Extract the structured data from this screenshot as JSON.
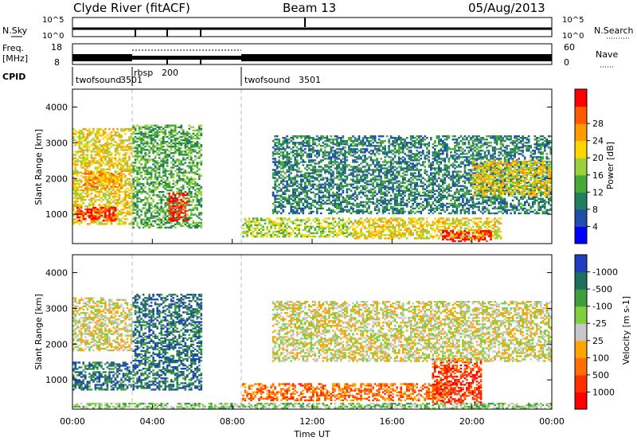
{
  "header": {
    "station": "Clyde River (fitACF)",
    "beam": "Beam 13",
    "date": "05/Aug/2013"
  },
  "panels": {
    "nsky": {
      "left_label": "N.Sky",
      "right_label": "N.Search",
      "left_ticks": [
        "10^5",
        "10^0"
      ],
      "right_ticks": [
        "10^5",
        "10^0"
      ]
    },
    "freq": {
      "left_label_1": "Freq.",
      "left_label_2": "[MHz]",
      "right_label": "Nave",
      "left_ticks": [
        "18",
        "8"
      ],
      "right_ticks": [
        "60",
        "0"
      ]
    },
    "cpid": {
      "label": "CPID",
      "segments": [
        {
          "name": "twofsound",
          "id": "3501",
          "start_hour": 0,
          "end_hour": 3.0
        },
        {
          "name": "rbsp",
          "id": "200",
          "start_hour": 3.0,
          "end_hour": 8.5
        },
        {
          "name": "twofsound",
          "id": "3501",
          "start_hour": 8.5,
          "end_hour": 24
        }
      ]
    }
  },
  "chart_data": [
    {
      "type": "heatmap",
      "quantity": "Power",
      "ylabel": "Slant Range [km]",
      "xlabel": "Time UT",
      "ylim": [
        180,
        4500
      ],
      "yticks": [
        1000,
        2000,
        3000,
        4000
      ],
      "xlim": [
        "00:00",
        "24:00"
      ],
      "xticks": [
        "00:00",
        "04:00",
        "08:00",
        "12:00",
        "16:00",
        "20:00",
        "00:00"
      ],
      "colorbar": {
        "label": "Power [dB]",
        "ticks": [
          "4",
          "8",
          "12",
          "16",
          "20",
          "24",
          "28"
        ],
        "colors": [
          "#0000ff",
          "#1f4fa8",
          "#1f7f5f",
          "#48a838",
          "#9bd23c",
          "#ffd700",
          "#ff9a00",
          "#ff5a00",
          "#ff0000"
        ]
      },
      "regions": [
        {
          "t0": 0.0,
          "t1": 3.0,
          "r0": 700,
          "r1": 3400,
          "level": 5
        },
        {
          "t0": 0.2,
          "t1": 2.2,
          "r0": 800,
          "r1": 1200,
          "level": 8
        },
        {
          "t0": 0.5,
          "t1": 2.5,
          "r0": 1700,
          "r1": 2200,
          "level": 6
        },
        {
          "t0": 3.0,
          "t1": 6.5,
          "r0": 600,
          "r1": 3500,
          "level": 3
        },
        {
          "t0": 4.8,
          "t1": 5.8,
          "r0": 800,
          "r1": 1600,
          "level": 8
        },
        {
          "t0": 8.5,
          "t1": 14.0,
          "r0": 350,
          "r1": 900,
          "level": 4
        },
        {
          "t0": 14.0,
          "t1": 21.5,
          "r0": 300,
          "r1": 900,
          "level": 5
        },
        {
          "t0": 18.5,
          "t1": 21.0,
          "r0": 220,
          "r1": 550,
          "level": 8
        },
        {
          "t0": 10.0,
          "t1": 24.0,
          "r0": 1000,
          "r1": 3200,
          "level": 2
        },
        {
          "t0": 20.0,
          "t1": 24.0,
          "r0": 1500,
          "r1": 2500,
          "level": 5
        }
      ]
    },
    {
      "type": "heatmap",
      "quantity": "Velocity",
      "ylabel": "Slant Range [km]",
      "xlabel": "Time UT",
      "ylim": [
        180,
        4500
      ],
      "yticks": [
        1000,
        2000,
        3000,
        4000
      ],
      "xlim": [
        "00:00",
        "24:00"
      ],
      "xticks": [
        "00:00",
        "04:00",
        "08:00",
        "12:00",
        "16:00",
        "20:00",
        "00:00"
      ],
      "colorbar": {
        "label": "Velocity [m s-1]",
        "ticks": [
          "1000",
          "500",
          "100",
          "25",
          "-25",
          "-100",
          "-500",
          "-1000"
        ],
        "colors": [
          "#1f3fbf",
          "#1f6f5f",
          "#3f9f3f",
          "#7fcf3f",
          "#c8c8c8",
          "#ffa500",
          "#ff7000",
          "#ff3000",
          "#ff0000"
        ]
      },
      "regions": [
        {
          "t0": 0.0,
          "t1": 3.0,
          "r0": 700,
          "r1": 1500,
          "level": 1
        },
        {
          "t0": 0.0,
          "t1": 3.0,
          "r0": 1800,
          "r1": 3300,
          "level": 4
        },
        {
          "t0": 3.0,
          "t1": 6.5,
          "r0": 700,
          "r1": 3400,
          "level": 1
        },
        {
          "t0": 8.5,
          "t1": 19.0,
          "r0": 400,
          "r1": 900,
          "level": 6
        },
        {
          "t0": 18.0,
          "t1": 20.5,
          "r0": 300,
          "r1": 1600,
          "level": 7
        },
        {
          "t0": 10.0,
          "t1": 24.0,
          "r0": 1500,
          "r1": 3200,
          "level": 4
        },
        {
          "t0": 0.0,
          "t1": 24.0,
          "r0": 180,
          "r1": 350,
          "level": 3
        }
      ]
    }
  ]
}
